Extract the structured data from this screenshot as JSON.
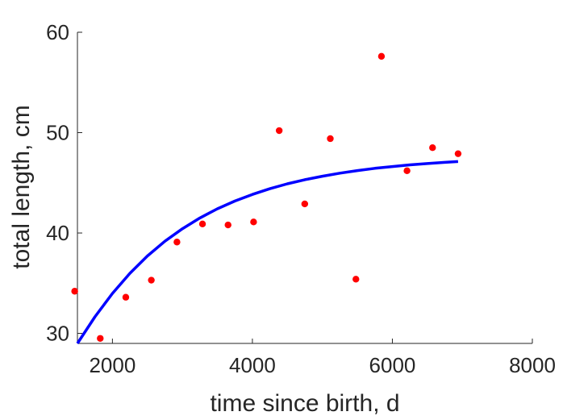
{
  "chart_data": {
    "type": "scatter",
    "xlabel": "time since birth, d",
    "ylabel": "total length, cm",
    "xlim": [
      1500,
      8000
    ],
    "ylim": [
      29,
      60
    ],
    "x_ticks": [
      2000,
      4000,
      6000,
      8000
    ],
    "y_ticks": [
      30,
      40,
      50,
      60
    ],
    "x_tick_labels": [
      "2000",
      "4000",
      "6000",
      "8000"
    ],
    "y_tick_labels": [
      "30",
      "40",
      "50",
      "60"
    ],
    "grid": false,
    "legend": "none",
    "series": [
      {
        "type": "scatter",
        "color": "#ff0000",
        "points": [
          [
            1461,
            34.2
          ],
          [
            1826,
            29.5
          ],
          [
            2191,
            33.6
          ],
          [
            2556,
            35.3
          ],
          [
            2922,
            39.1
          ],
          [
            3287,
            40.9
          ],
          [
            3652,
            40.8
          ],
          [
            4017,
            41.1
          ],
          [
            4383,
            50.2
          ],
          [
            4748,
            42.9
          ],
          [
            5113,
            49.4
          ],
          [
            5479,
            35.4
          ],
          [
            5844,
            57.6
          ],
          [
            6209,
            46.2
          ],
          [
            6574,
            48.5
          ],
          [
            6939,
            47.9
          ]
        ]
      },
      {
        "type": "line",
        "color": "#0000ff",
        "points": [
          [
            1500,
            29.0
          ],
          [
            1750,
            31.65
          ],
          [
            2000,
            33.98
          ],
          [
            2250,
            35.99
          ],
          [
            2500,
            37.71
          ],
          [
            2750,
            39.18
          ],
          [
            3000,
            40.43
          ],
          [
            3250,
            41.5
          ],
          [
            3500,
            42.41
          ],
          [
            3750,
            43.18
          ],
          [
            4000,
            43.84
          ],
          [
            4250,
            44.41
          ],
          [
            4500,
            44.9
          ],
          [
            4750,
            45.31
          ],
          [
            5000,
            45.66
          ],
          [
            5250,
            45.96
          ],
          [
            5500,
            46.22
          ],
          [
            5750,
            46.44
          ],
          [
            6000,
            46.62
          ],
          [
            6250,
            46.79
          ],
          [
            6500,
            46.92
          ],
          [
            6750,
            47.04
          ],
          [
            6939,
            47.12
          ]
        ]
      }
    ]
  }
}
